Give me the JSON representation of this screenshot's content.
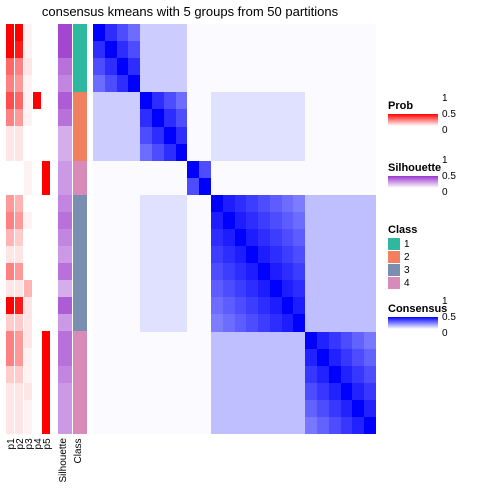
{
  "title": "consensus kmeans with 5 groups from 50 partitions",
  "colors": {
    "white": "#ffffff",
    "prob_max": "#ff0000",
    "silhouette_max": "#9933cc",
    "consensus_max": "#0000ff",
    "class": {
      "1": "#2eb8a0",
      "2": "#f08060",
      "3": "#7a8fb0",
      "4": "#d88ab8"
    }
  },
  "n_rows": 24,
  "prob_cols": [
    "p1",
    "p2",
    "p3",
    "p4",
    "p5"
  ],
  "block_boundaries": [
    0,
    4,
    8,
    10,
    18,
    24
  ],
  "class_assignment": [
    1,
    1,
    1,
    1,
    2,
    2,
    2,
    2,
    4,
    4,
    3,
    3,
    3,
    3,
    3,
    3,
    3,
    3,
    4,
    4,
    4,
    4,
    4,
    4
  ],
  "prob": {
    "p1": [
      1,
      1,
      0.6,
      0.5,
      0.7,
      0.5,
      0.1,
      0.1,
      0,
      0,
      0.4,
      0.5,
      0.3,
      0.1,
      0.5,
      0.1,
      1,
      0.2,
      0.5,
      0.5,
      0.2,
      0.1,
      0.1,
      0.1
    ],
    "p2": [
      1,
      0.9,
      0.5,
      0.4,
      0.6,
      0.4,
      0.1,
      0.1,
      0,
      0,
      0.3,
      0.4,
      0.2,
      0.1,
      0.4,
      0.1,
      0.9,
      0.2,
      0.4,
      0.4,
      0.2,
      0.1,
      0.1,
      0.1
    ],
    "p3": [
      0.05,
      0.05,
      0.1,
      0.05,
      0.05,
      0.05,
      0,
      0,
      0.05,
      0.05,
      0,
      0.05,
      0,
      0,
      0,
      0.3,
      0.1,
      0.1,
      0.1,
      0.05,
      0.05,
      0.1,
      0.05,
      0.05
    ],
    "p4": [
      0,
      0,
      0,
      0,
      1,
      0,
      0,
      0,
      0,
      0,
      0,
      0,
      0,
      0,
      0,
      0,
      0,
      0,
      0,
      0,
      0,
      0,
      0,
      0
    ],
    "p5": [
      0,
      0,
      0,
      0,
      0,
      0,
      0,
      0,
      1,
      1,
      0,
      0,
      0,
      0,
      0,
      0,
      0,
      0,
      1,
      1,
      1,
      1,
      1,
      1
    ]
  },
  "silhouette": [
    0.9,
    0.9,
    0.7,
    0.6,
    0.8,
    0.7,
    0.4,
    0.4,
    0.5,
    0.5,
    0.6,
    0.7,
    0.6,
    0.5,
    0.7,
    0.4,
    0.8,
    0.5,
    0.7,
    0.7,
    0.6,
    0.5,
    0.5,
    0.5
  ],
  "legends": {
    "prob": {
      "title": "Prob",
      "ticks": [
        "1",
        "0.5",
        "0"
      ]
    },
    "silhouette": {
      "title": "Silhouette",
      "ticks": [
        "1",
        "0.5",
        "0"
      ]
    },
    "class": {
      "title": "Class",
      "items": [
        "1",
        "2",
        "3",
        "4"
      ]
    },
    "consensus": {
      "title": "Consensus",
      "ticks": [
        "1",
        "0.5",
        "0"
      ]
    }
  }
}
